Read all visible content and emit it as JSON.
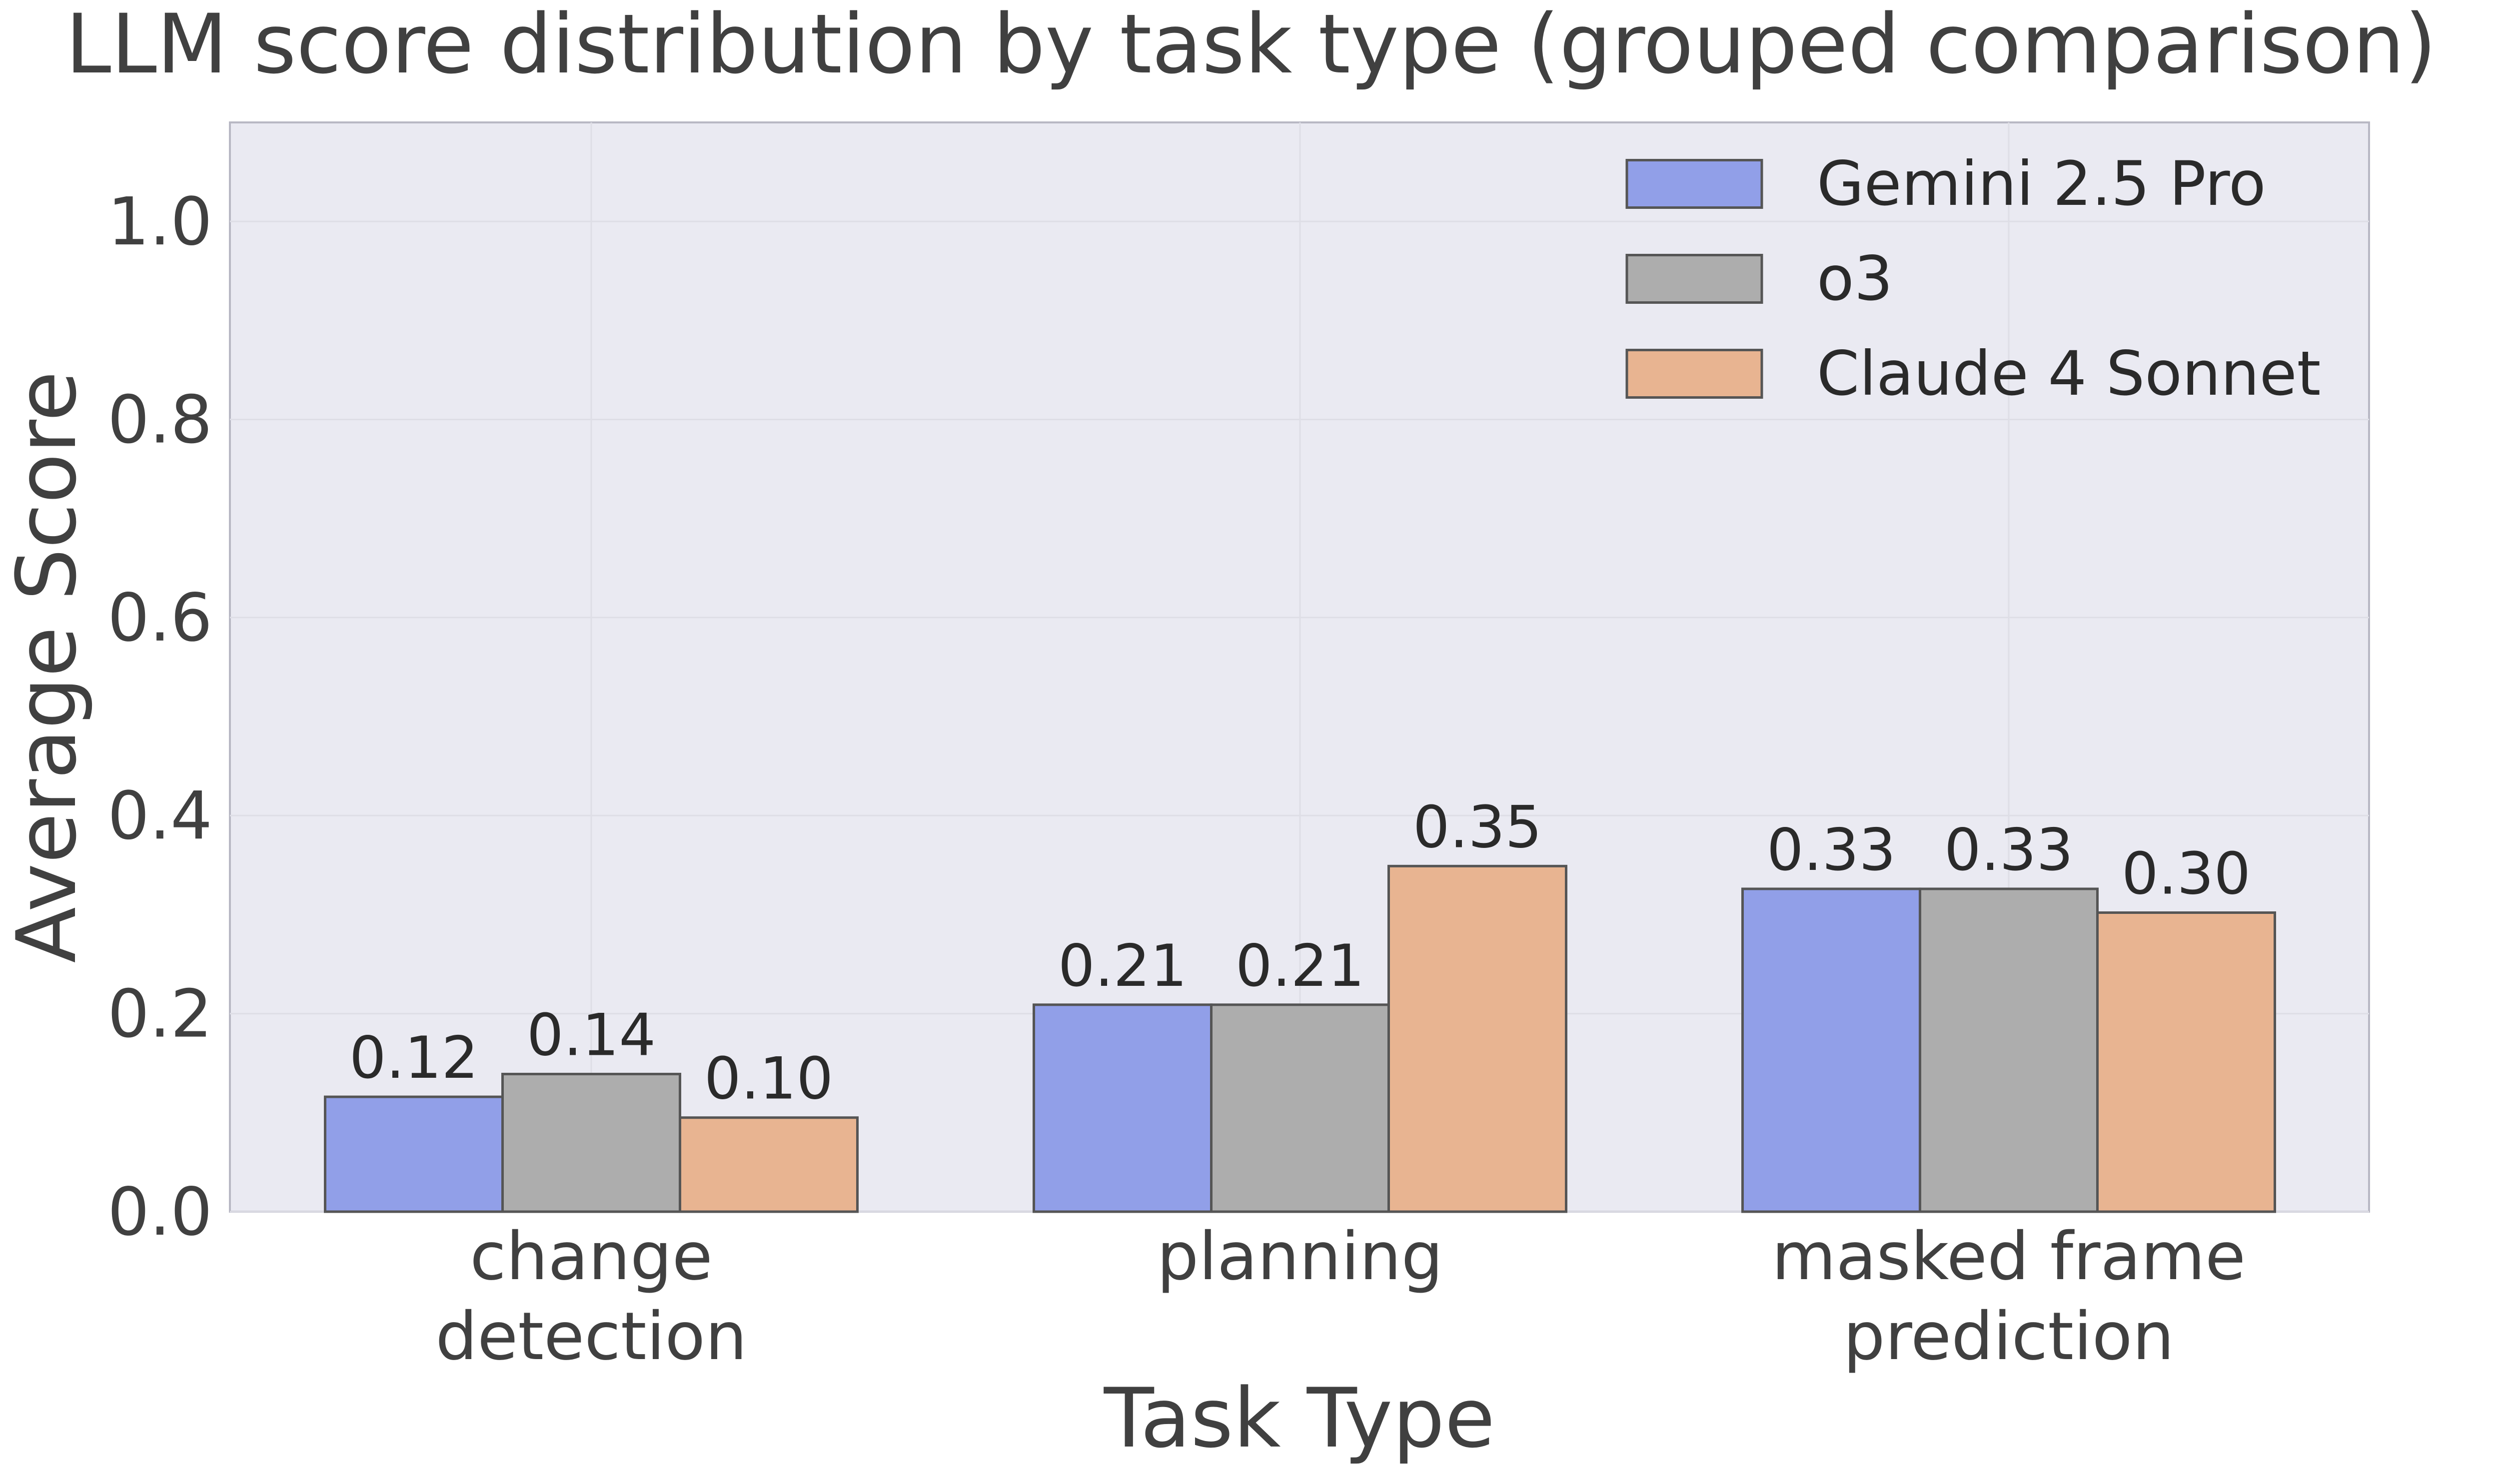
{
  "chart_data": {
    "type": "bar",
    "title": "LLM score distribution by task type (grouped comparison)",
    "xlabel": "Task Type",
    "ylabel": "Average Score",
    "ylim": [
      0,
      1.1
    ],
    "yticks": [
      "0.0",
      "0.2",
      "0.4",
      "0.6",
      "0.8",
      "1.0"
    ],
    "ytick_values": [
      0,
      0.2,
      0.4,
      0.6,
      0.8,
      1.0
    ],
    "categories": [
      [
        "change",
        "detection"
      ],
      [
        "planning"
      ],
      [
        "masked frame",
        "prediction"
      ]
    ],
    "series": [
      {
        "name": "Gemini 2.5 Pro",
        "color": "#919fe8",
        "values": [
          0.116,
          0.209,
          0.326
        ],
        "labels": [
          "0.12",
          "0.21",
          "0.33"
        ]
      },
      {
        "name": "o3",
        "color": "#adadad",
        "values": [
          0.139,
          0.209,
          0.326
        ],
        "labels": [
          "0.14",
          "0.21",
          "0.33"
        ]
      },
      {
        "name": "Claude 4 Sonnet",
        "color": "#e8b491",
        "values": [
          0.095,
          0.349,
          0.302
        ],
        "labels": [
          "0.10",
          "0.35",
          "0.30"
        ]
      }
    ],
    "grid": true,
    "legend": "top-right"
  }
}
